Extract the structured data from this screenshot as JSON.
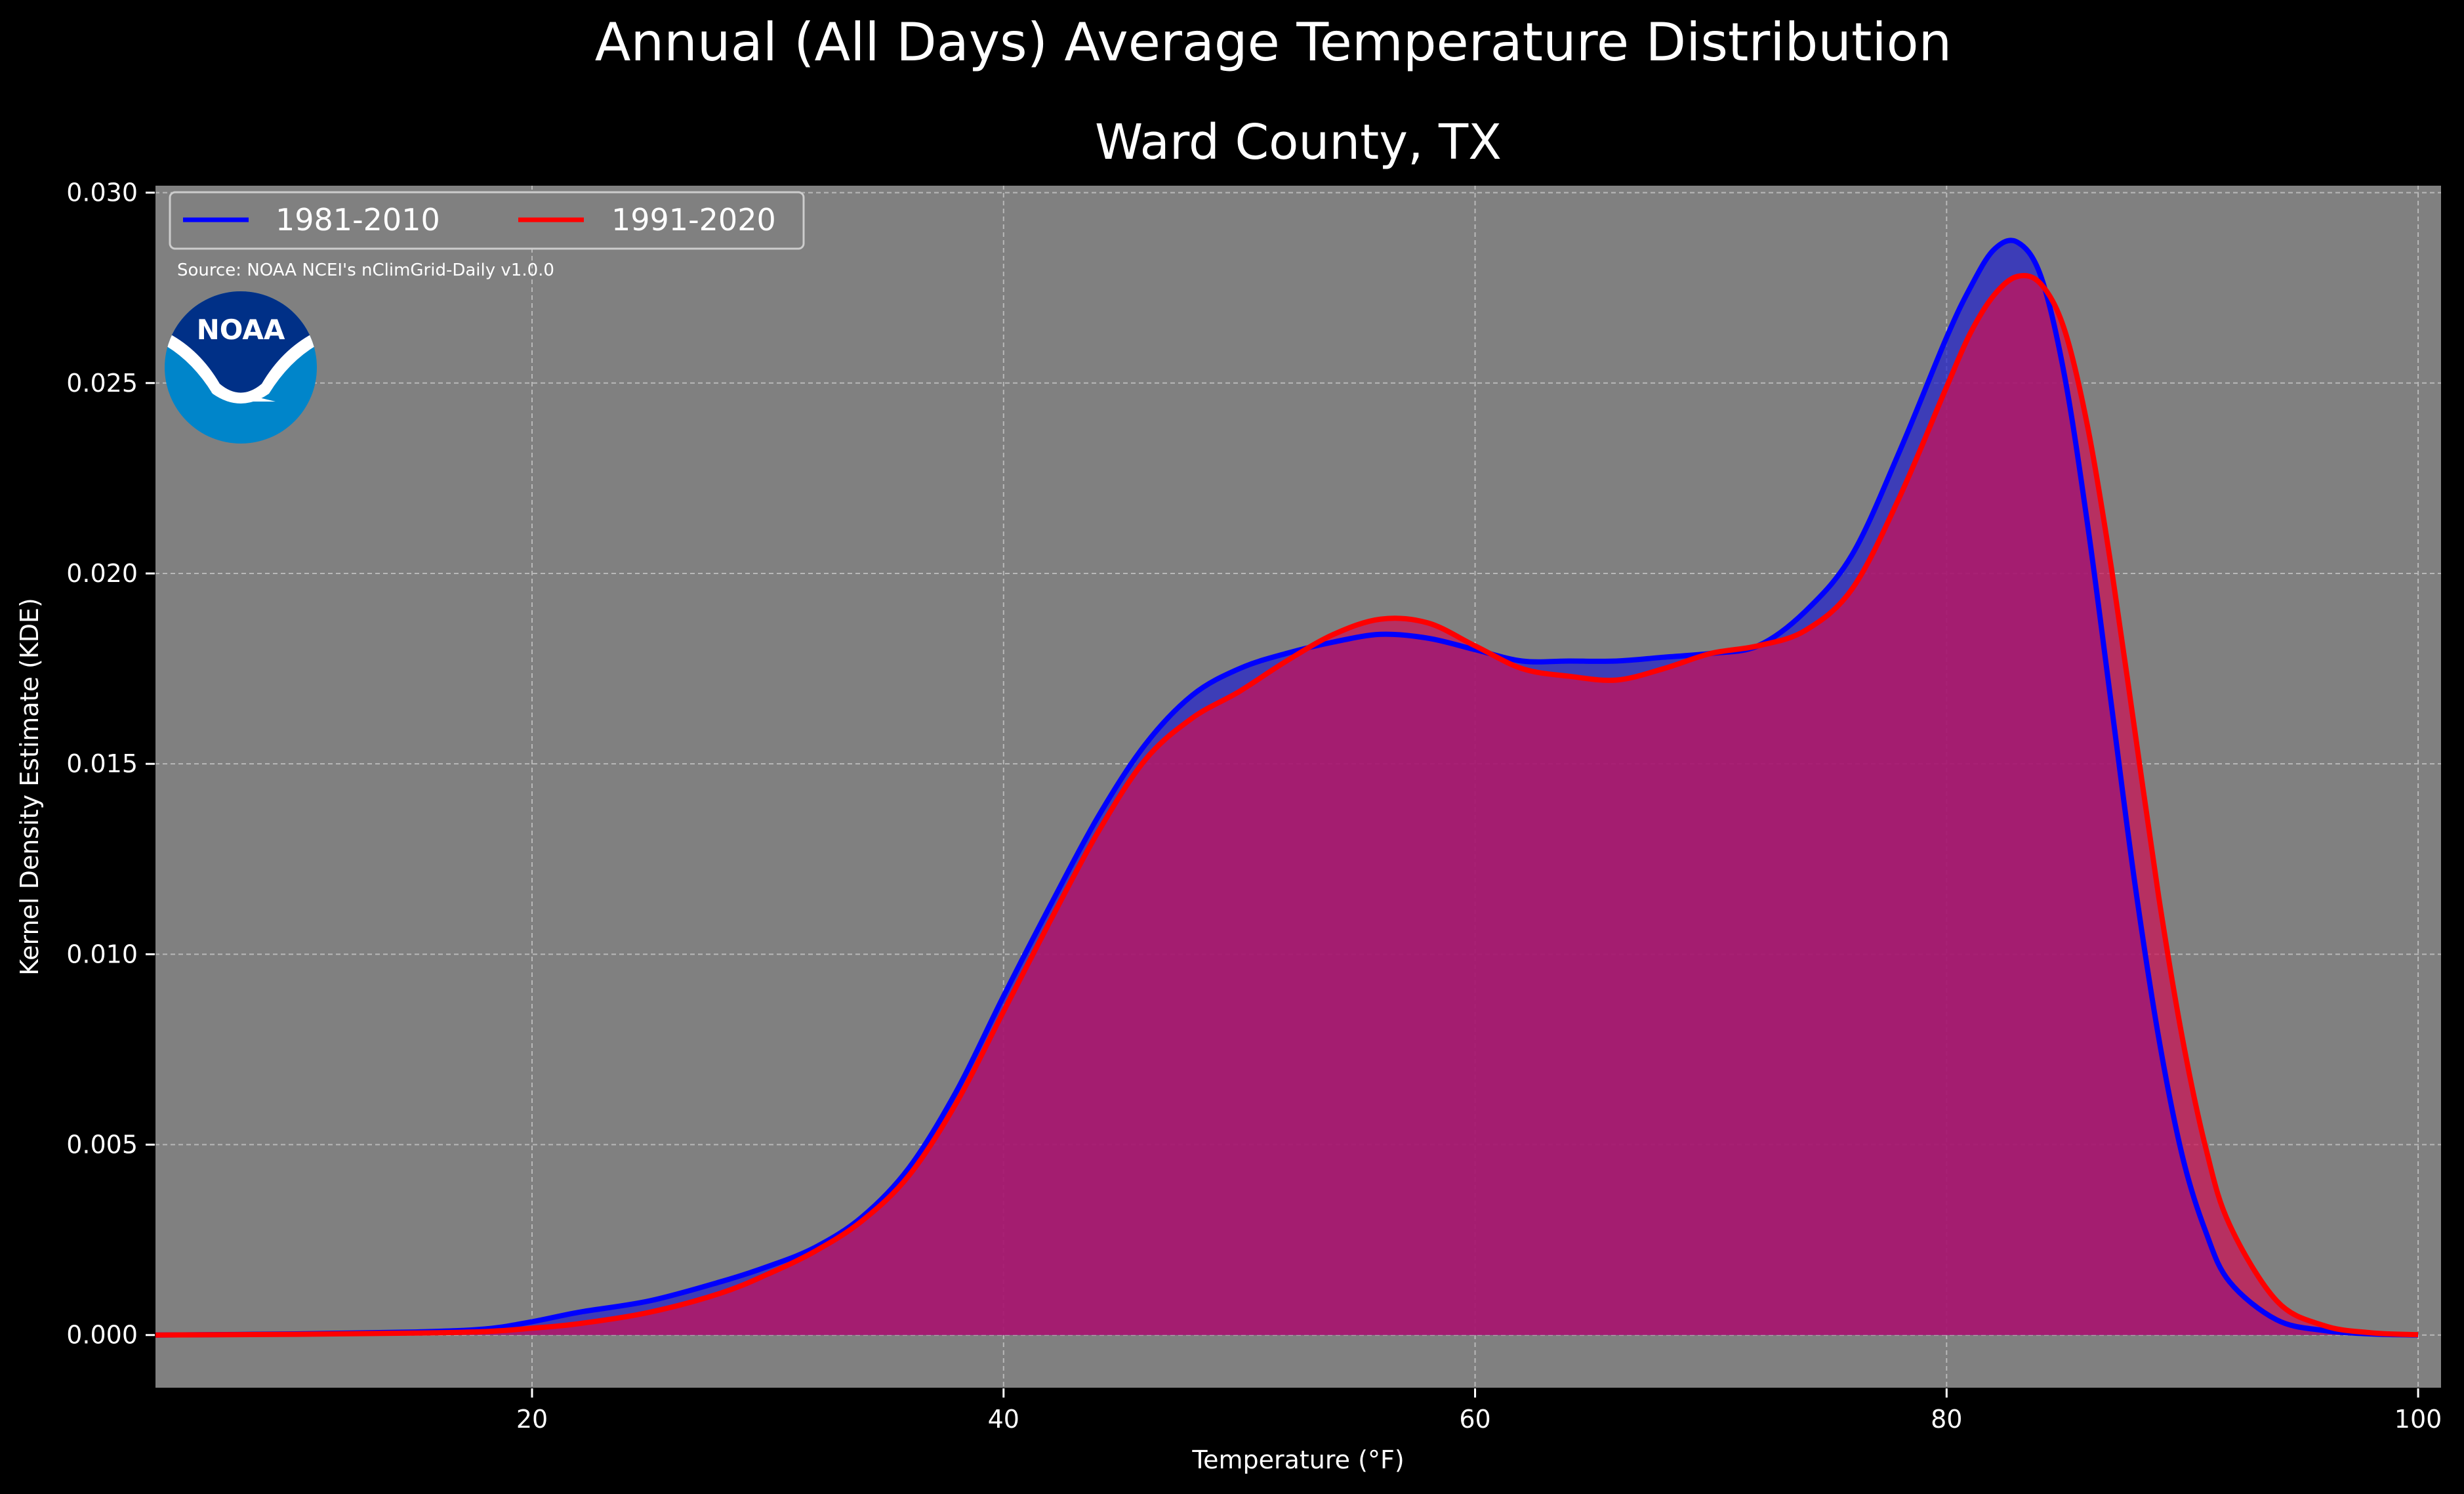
{
  "chart_data": {
    "type": "area",
    "title": "Annual (All Days) Average Temperature Distribution",
    "subtitle": "Ward County, TX",
    "xlabel": "Temperature (°F)",
    "ylabel": "Kernel Density Estimate (KDE)",
    "xlim": [
      4,
      101
    ],
    "ylim": [
      -0.0014,
      0.0302
    ],
    "xticks": [
      20,
      40,
      60,
      80,
      100
    ],
    "yticks": [
      0.0,
      0.005,
      0.01,
      0.015,
      0.02,
      0.025,
      0.03
    ],
    "ytick_labels": [
      "0.000",
      "0.005",
      "0.010",
      "0.015",
      "0.020",
      "0.025",
      "0.030"
    ],
    "grid": true,
    "legend_position": "top-left",
    "background_color": "#808080",
    "source": "Source: NOAA NCEI's nClimGrid-Daily v1.0.0",
    "series": [
      {
        "name": "1981-2010",
        "line_color": "#0000ff",
        "fill_color": "#2222cc",
        "x": [
          4,
          10,
          15,
          18,
          20,
          22,
          25,
          28,
          30,
          32,
          34,
          36,
          38,
          40,
          42,
          44,
          46,
          48,
          50,
          52,
          54,
          56,
          58,
          60,
          62,
          64,
          66,
          68,
          70,
          72,
          74,
          76,
          78,
          80,
          81,
          82,
          83,
          84,
          85,
          86,
          87,
          88,
          89,
          90,
          91,
          92,
          94,
          96,
          98,
          100
        ],
        "y": [
          0.0,
          3e-05,
          8e-05,
          0.00016,
          0.00035,
          0.0006,
          0.0009,
          0.0014,
          0.0018,
          0.0023,
          0.0031,
          0.0044,
          0.0064,
          0.0089,
          0.0113,
          0.0136,
          0.0155,
          0.0168,
          0.0175,
          0.0179,
          0.0182,
          0.0184,
          0.0183,
          0.018,
          0.0177,
          0.0177,
          0.0177,
          0.0178,
          0.0179,
          0.0181,
          0.019,
          0.0205,
          0.0232,
          0.0262,
          0.0275,
          0.0285,
          0.0287,
          0.0278,
          0.0252,
          0.0212,
          0.0165,
          0.0118,
          0.0078,
          0.0047,
          0.0027,
          0.0014,
          0.0004,
          0.00012,
          3e-05,
          0.0
        ]
      },
      {
        "name": "1991-2020",
        "line_color": "#ff0000",
        "fill_color": "#cc1155",
        "x": [
          4,
          10,
          15,
          18,
          20,
          22,
          25,
          28,
          30,
          32,
          34,
          36,
          38,
          40,
          42,
          44,
          46,
          48,
          50,
          52,
          54,
          56,
          58,
          60,
          62,
          64,
          66,
          68,
          70,
          72,
          74,
          76,
          78,
          80,
          81,
          82,
          83,
          84,
          85,
          86,
          87,
          88,
          89,
          90,
          91,
          92,
          94,
          96,
          98,
          100
        ],
        "y": [
          0.0,
          2e-05,
          5e-05,
          9e-05,
          0.00018,
          0.0003,
          0.0006,
          0.0011,
          0.0016,
          0.0022,
          0.003,
          0.0042,
          0.0061,
          0.0085,
          0.0109,
          0.0132,
          0.0151,
          0.0162,
          0.0169,
          0.0177,
          0.0184,
          0.0188,
          0.0187,
          0.0181,
          0.0175,
          0.0173,
          0.0172,
          0.0175,
          0.0179,
          0.0181,
          0.0185,
          0.0196,
          0.022,
          0.0249,
          0.0263,
          0.0273,
          0.0278,
          0.0276,
          0.0264,
          0.0238,
          0.0201,
          0.0158,
          0.0115,
          0.0078,
          0.0049,
          0.0029,
          0.0009,
          0.00025,
          6e-05,
          1e-05
        ]
      }
    ]
  },
  "logo": {
    "name": "noaa-logo",
    "text": "NOAA",
    "outer_color": "#0085ca",
    "inner_color": "#003087"
  }
}
